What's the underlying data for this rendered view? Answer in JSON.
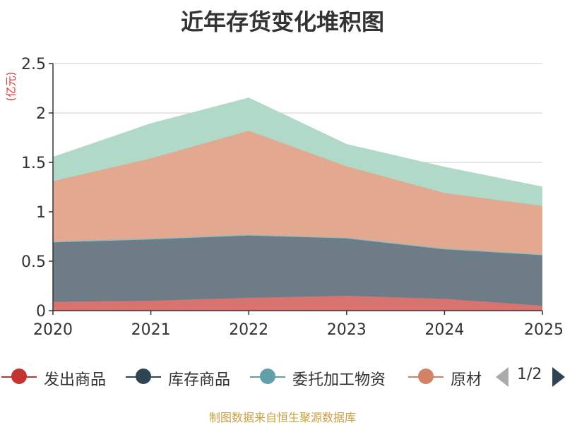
{
  "title": "近年存货变化堆积图",
  "unit": "(亿元)",
  "source": "制图数据来自恒生聚源数据库",
  "pager": {
    "text": "1/2"
  },
  "legend": [
    {
      "name": "发出商品",
      "color": "#c23531"
    },
    {
      "name": "库存商品",
      "color": "#2f4554"
    },
    {
      "name": "委托加工物资",
      "color": "#61a0a8"
    },
    {
      "name": "原材",
      "color": "#d48265"
    }
  ],
  "chart_data": {
    "type": "area",
    "stacked": true,
    "x": [
      "2020",
      "2021",
      "2022",
      "2023",
      "2024",
      "2025"
    ],
    "ylim": [
      0,
      2.5
    ],
    "yticks": [
      "0",
      "0.5",
      "1",
      "1.5",
      "2",
      "2.5"
    ],
    "grid": true,
    "series": [
      {
        "name": "发出商品",
        "color": "#d9736f",
        "values": [
          0.09,
          0.1,
          0.13,
          0.15,
          0.12,
          0.05
        ]
      },
      {
        "name": "库存商品",
        "color": "#6e7c87",
        "values": [
          0.6,
          0.62,
          0.63,
          0.58,
          0.5,
          0.51
        ]
      },
      {
        "name": "委托加工物资",
        "color": "#8fbcc2",
        "values": [
          0.01,
          0.01,
          0.01,
          0.01,
          0.01,
          0.01
        ]
      },
      {
        "name": "原材",
        "color": "#e2a890",
        "values": [
          0.61,
          0.81,
          1.05,
          0.72,
          0.56,
          0.49
        ]
      },
      {
        "name": "",
        "color": "#b1d9c7",
        "values": [
          0.24,
          0.35,
          0.33,
          0.22,
          0.26,
          0.19
        ]
      }
    ]
  }
}
